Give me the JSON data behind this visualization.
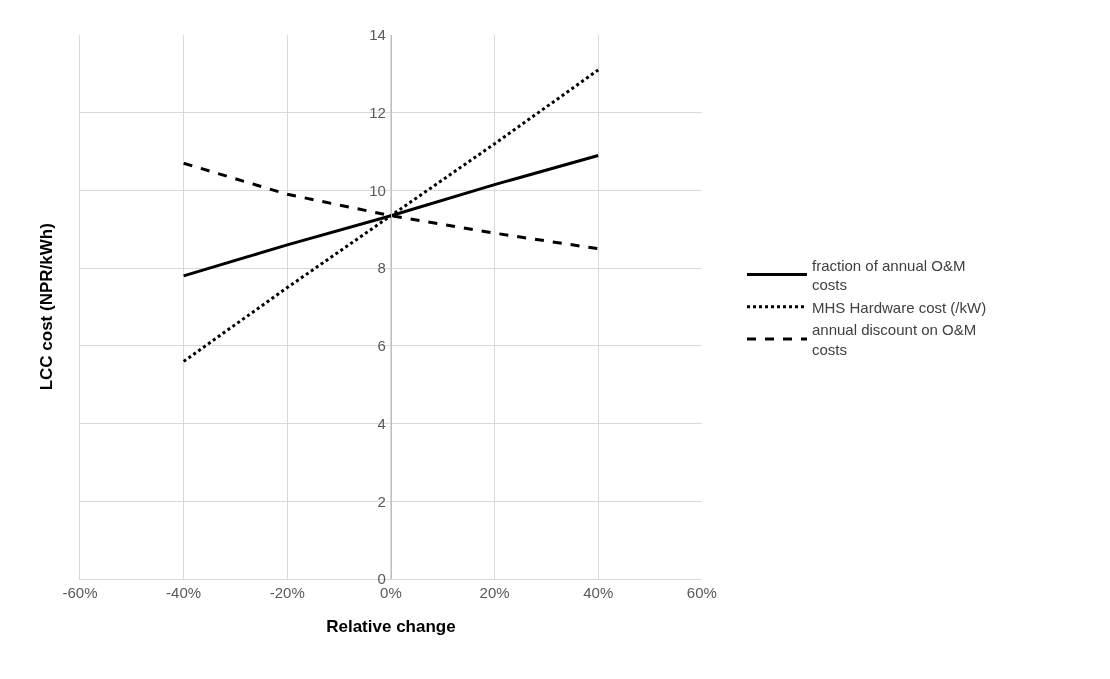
{
  "chart_data": {
    "type": "line",
    "xlabel": "Relative change",
    "ylabel": "LCC cost (NPR/kWh)",
    "x": [
      -40,
      -20,
      0,
      20,
      40
    ],
    "series": [
      {
        "name": "fraction of annual O&M costs",
        "color": "#000000",
        "line_style": "solid",
        "values": [
          7.8,
          8.6,
          9.35,
          10.15,
          10.9
        ]
      },
      {
        "name": "MHS Hardware cost (/kW)",
        "color": "#000000",
        "line_style": "dotted",
        "values": [
          5.6,
          7.5,
          9.35,
          11.2,
          13.1
        ]
      },
      {
        "name": "annual discount on O&M costs",
        "color": "#000000",
        "line_style": "dashed",
        "values": [
          10.7,
          9.9,
          9.35,
          8.9,
          8.5
        ]
      }
    ],
    "xlim": [
      -60,
      60
    ],
    "xticks": [
      {
        "value": -60,
        "label": "-60%"
      },
      {
        "value": -40,
        "label": "-40%"
      },
      {
        "value": -20,
        "label": "-20%"
      },
      {
        "value": 0,
        "label": "0%"
      },
      {
        "value": 20,
        "label": "20%"
      },
      {
        "value": 40,
        "label": "40%"
      },
      {
        "value": 60,
        "label": "60%"
      }
    ],
    "ylim": [
      0,
      14
    ],
    "yticks": [
      0,
      2,
      4,
      6,
      8,
      10,
      12,
      14
    ],
    "grid": true,
    "legend": "right",
    "marker": "none"
  }
}
